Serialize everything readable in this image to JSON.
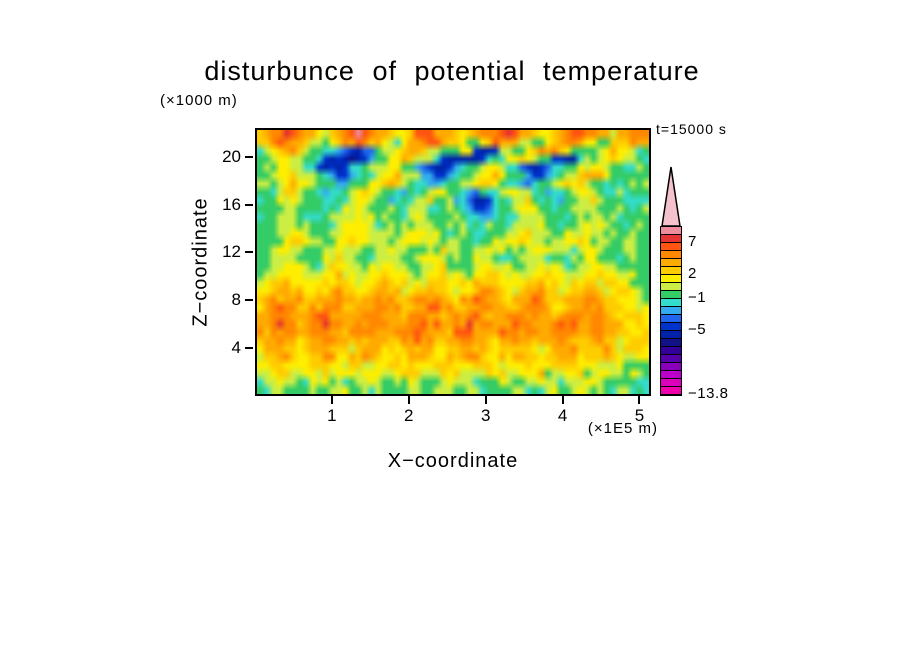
{
  "figure": {
    "title": "disturbunce of potential temperature",
    "y_axis_unit": "(×1000 m)",
    "x_axis_unit": "(×1E5 m)",
    "x_axis_label": "X−coordinate",
    "y_axis_label": "Z−coordinate",
    "time_label": "t=15000 s"
  },
  "chart_data": {
    "type": "heatmap",
    "title": "disturbunce of potential temperature",
    "xlabel": "X−coordinate",
    "ylabel": "Z−coordinate",
    "x_unit_note": "(×1E5 m)",
    "y_unit_note": "(×1000 m)",
    "annotation": "t=15000 s",
    "x_range": [
      0,
      5.15
    ],
    "y_range": [
      0,
      22.4
    ],
    "x_ticks": [
      1,
      2,
      3,
      4,
      5
    ],
    "y_ticks": [
      4,
      8,
      12,
      16,
      20
    ],
    "value_levels_labeled": [
      7,
      2,
      -1,
      -5,
      -13.8
    ],
    "palette": {
      "chars": "abcdefghijklmnopqrstu",
      "colors": [
        "#ee00aa",
        "#dd00bb",
        "#bb00cc",
        "#8800bb",
        "#5500aa",
        "#330099",
        "#111188",
        "#0022aa",
        "#0033cc",
        "#2266ee",
        "#33aaee",
        "#33ddcc",
        "#33cc66",
        "#ccee44",
        "#ffee00",
        "#ffcc00",
        "#ffaa00",
        "#ff8800",
        "#ff5511",
        "#e63333",
        "#ee8c9c"
      ]
    },
    "grid_rows": [
      "qqrrssrqqoopqrstsrqqpooqrssrqqpopqrrsttsrqpoopqrssrrqqopqqrr",
      "pqrsrqponmmopqrsrqponmopqrssrqponmoqrrqponmmopqrrqponmopqrqp",
      "mnopqqpnmmmlkjiijkmmnopqqponmmmnoihhionmmopqrqponmmmnopponmm",
      "mmnoponmmlihhghhilmmnoponmmlihhghhilmmnoponmlihhilmmnoponmmm",
      "mnnoonmmlihhhiklmmnnoonmlkihhiklmmnoonmlkihhiklmmnnoonmmllmm",
      "mmnopqonmmlkiiklmmnopqonmlkiiklmmnopqonmlkiiklmmnopqponmmlmm",
      "mmmnoponmmmlkklmmnopqponmlkklmmnnopponmlkklmmnopponmmlmmmnmm",
      "mmlnoonmllkllmnoponmllkllmnoonmllkllmnoonmllkllmnoonmllmmmmm",
      "mmmnnonmmmllmmnoonmmllmmnnonmmllihhilmmnnonmmllmmnnonmmmlmmm",
      "mmmmnnnmmmmmmnnonmmmmmmnnnmmmmmlkiiklmmmnnnmmmmmnnnmmmmmmmmm",
      "mmmmmnnmmmmmnnnonnmmmmmnnnmmmmmmlkklmmmmnnnmmmmmmnnnmmmmmmmm",
      "mmmmnnnnmmmmnooonnmmmmnnonnmmmmmlllmmmmnnonnmmmmnnonnmmmmmmm",
      "mmmnnoonnmmnnoooonnmmmnooonnmmmmmllmmmnnoonnmmmnnoonnmmmmnmm",
      "mmnnoooonnnnoopoonnnmnoopoonmmmmmmmmnnooponnmnnooponnmmmnnmm",
      "mmnnonnmmmnnoonnmmnnonnmmmnnonnmmnnonnmmmnnonnmmmnnonnmmmnmm",
      "mmmnnnmmmmnnonnmmmnnnnmmmnnnnmmmmnnnmmmmnnnnmmmmmnnnmmmmmnnm",
      "mmnnoonnmmnooonnmnnoonnmmnnoonnmmnooonnmmnnoonnmmnnoonnmmmmm",
      "mnnoopoonnoopoonnoopoonnmnoopoonmnoopoonnnoopoonnnoopoonnnmm",
      "noopppooooppppoooppqpooooopppooooppppooooppppoooopppoooonnm ",
      "oppqqppooppqqppoopqqppooppqqppooppqqqpooppqqppooppqqpoopponm",
      "pqqqrqqppqqqrqqppqqqqppqqqrqqppqqrrqqppqqqrqqppqqqrqqppooonm",
      "pqqrrqqpqqrrqppqqqrrqqppqqrrqqppqqrrqqppqqrrqppqqrrqqppooonn",
      "qqrrrqqqqrrrqqqqrrrqqqqrrrqqqqrrrrqqqqrrrqqqqqrrrqqqqqpooppo",
      "qrrsrrqqrrsrrqqrrrsrrqqrrsrrqqrrsrrrqqrrrrqqrrsrrqqrrqqpoopo",
      "qqrrrqqqrrrqqqqrrrrqqqrrrrqqqqrrrqqqqrrrqqqqrrrqqqqrrqqppoop",
      "pqqrqqppqqrrqppqqrqqppqqrqqppqqrrqqppqqrqqppqqrqqppqqppooppo",
      "pqqqppopqqqqppopqqqppopqqqqpoppqqqppopqqqppopqqqqpopqqpoopoo",
      "oppqqpooppqqooppqqpooppqqqpooppqqqpooppqqpooppqqqooppqpoooon",
      "oppppooopppoooppooooppppooopppooopppoooppppooopppooonnnn    ",
      "nooopnnooopnnooooponnooopnnooopnnoooopnnooopnnooopnnooonmnnm",
      "mnnonnmmnnonnmmnnonmmnnonnmmnnonnmmnnonmmnnonnmmnnonnmmmmmmm",
      "mmnnmmmnnmmmnnmmmmnnmmmnnmmmnnmmnnmmmmmnnmmmnnmmmnnmmmmnmmmm"
    ],
    "colorbar": {
      "arrow_color": "#f4c2cc",
      "segment_colors": [
        "#ee8c9c",
        "#e63333",
        "#ff5511",
        "#ff8800",
        "#ffaa00",
        "#ffcc00",
        "#ffee00",
        "#ccee44",
        "#33cc66",
        "#33ddcc",
        "#33aaee",
        "#2266ee",
        "#0033cc",
        "#0022aa",
        "#111188",
        "#330099",
        "#5500aa",
        "#8800bb",
        "#bb00cc",
        "#dd00bb",
        "#ee00aa"
      ],
      "labels": [
        {
          "text": "7",
          "boundary": 2
        },
        {
          "text": "2",
          "boundary": 6
        },
        {
          "text": "−1",
          "boundary": 9
        },
        {
          "text": "−5",
          "boundary": 13
        },
        {
          "text": "−13.8",
          "boundary": 21
        }
      ]
    }
  }
}
